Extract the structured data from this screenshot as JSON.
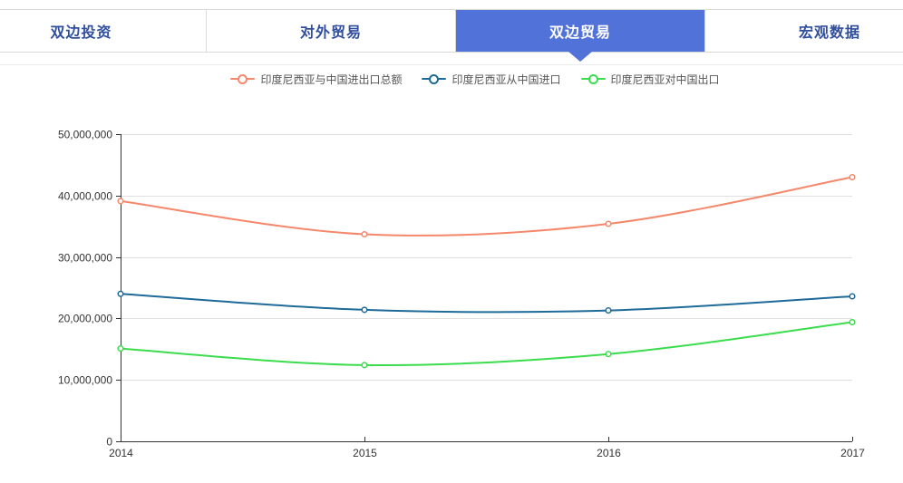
{
  "page": {
    "background": "#ffffff"
  },
  "tab_bar": {
    "border_color": "#d9d9d9",
    "active_bg": "#5172d8",
    "active_text": "#ffffff",
    "inactive_text": "#2f4e9e",
    "tabs": [
      {
        "key": "bilateral-investment",
        "label": "双边投资",
        "active": false
      },
      {
        "key": "foreign-trade",
        "label": "对外贸易",
        "active": false
      },
      {
        "key": "bilateral-trade",
        "label": "双边贸易",
        "active": true
      },
      {
        "key": "macro-data",
        "label": "宏观数据",
        "active": false
      }
    ]
  },
  "chart_data": {
    "type": "line",
    "smooth": true,
    "x": [
      "2014",
      "2015",
      "2016",
      "2017"
    ],
    "series": [
      {
        "key": "total-trade",
        "name": "印度尼西亚与中国进出口总额",
        "color": "#f5876b",
        "values": [
          39100000,
          33700000,
          35400000,
          43000000
        ]
      },
      {
        "key": "imports-from-china",
        "name": "印度尼西亚从中国进口",
        "color": "#1e6a99",
        "values": [
          24000000,
          21400000,
          21300000,
          23600000
        ]
      },
      {
        "key": "exports-to-china",
        "name": "印度尼西亚对中国出口",
        "color": "#3bdc4d",
        "values": [
          15100000,
          12400000,
          14200000,
          19400000
        ]
      }
    ],
    "ylim": [
      0,
      50000000
    ],
    "ytick_interval": 10000000,
    "ytick_labels": [
      "0",
      "10,000,000",
      "20,000,000",
      "30,000,000",
      "40,000,000",
      "50,000,000"
    ],
    "legend_position": "top-center",
    "grid": "horizontal-only",
    "axis_color": "#333333",
    "grid_color": "#e0e0e0",
    "tick_label_color": "#333333",
    "legend_text_color": "#555555"
  }
}
